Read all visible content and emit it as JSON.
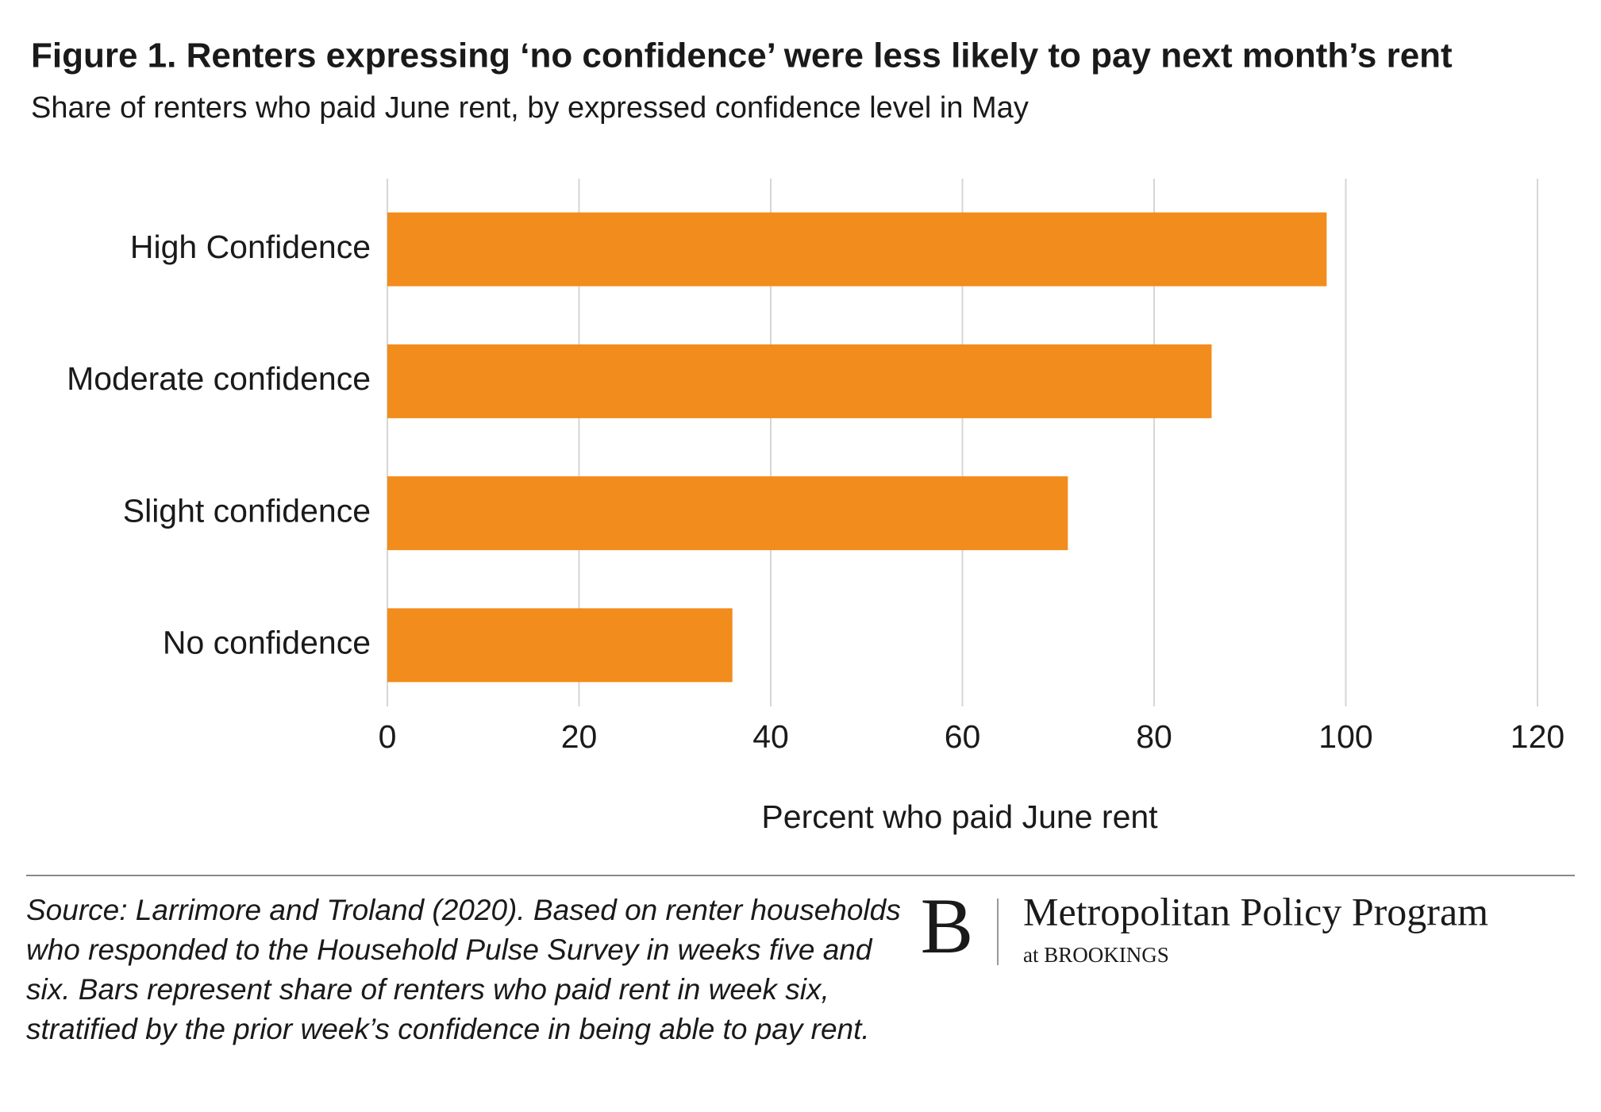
{
  "chart_data": {
    "type": "bar",
    "orientation": "horizontal",
    "title": "Figure 1. Renters expressing ‘no confidence’ were less likely to pay next month’s rent",
    "subtitle": "Share of renters who paid June rent, by expressed confidence level in May",
    "categories": [
      "High Confidence",
      "Moderate confidence",
      "Slight confidence",
      "No confidence"
    ],
    "values": [
      98,
      86,
      71,
      36
    ],
    "color": "#f28c1c",
    "xlim": [
      0,
      120
    ],
    "xticks": [
      0,
      20,
      40,
      60,
      80,
      100,
      120
    ],
    "x_label": "Percent who paid June rent",
    "grid": true
  },
  "source": "Source: Larrimore and Troland (2020). Based on renter households who responded to the Household Pulse Survey in weeks five and six. Bars represent share of renters who paid rent in week six, stratified by the prior week’s confidence in being able to pay rent.",
  "logo": {
    "mark": "B",
    "name": "Metropolitan Policy Program",
    "sub": "at BROOKINGS"
  }
}
